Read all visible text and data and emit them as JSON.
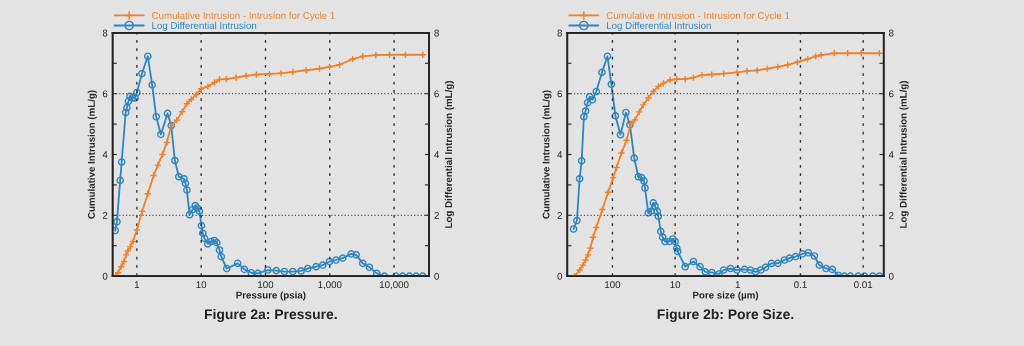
{
  "chart_data": [
    {
      "type": "line",
      "xlabel": "Pressure (psia)",
      "ylabel": "Cumulative Intrusion (mL/g)",
      "y2label": "Log Differential Intrusion (mL/g)",
      "log": "x",
      "xlim": [
        0.42,
        35000
      ],
      "xticks": [
        1,
        10,
        100,
        {
          "value": 1000,
          "label": "1,000"
        },
        {
          "value": 10000,
          "label": "10,000"
        }
      ],
      "ylim": [
        0,
        8
      ],
      "yticks": [
        0,
        {
          "value": 1,
          "label": null
        },
        2,
        {
          "value": 3,
          "label": null
        },
        4,
        {
          "value": 5,
          "label": null
        },
        6,
        {
          "value": 7,
          "label": null
        },
        8
      ],
      "y2lim": [
        0,
        8
      ],
      "y2ticks": [
        0,
        {
          "value": 1,
          "label": null
        },
        2,
        {
          "value": 3,
          "label": null
        },
        4,
        {
          "value": 5,
          "label": null
        },
        6,
        {
          "value": 7,
          "label": null
        },
        8
      ],
      "grid": "x",
      "legend": "top left",
      "ref_lines": [
        {
          "axis": "y",
          "value": 2,
          "line_style": "dotted"
        },
        {
          "axis": "y",
          "value": 6,
          "line_style": "dotted"
        }
      ],
      "annotations": [
        "Figure 2a: Pressure."
      ],
      "series": [
        {
          "name": "Cumulative Intrusion - Intrusion for Cycle 1",
          "color": "#f58025",
          "marker": "cross",
          "x": [
            0.47,
            0.51,
            0.57,
            0.63,
            0.68,
            0.72,
            0.79,
            0.87,
            1.0,
            1.21,
            1.48,
            1.82,
            2.12,
            2.5,
            2.93,
            3.42,
            4.18,
            5.06,
            6.0,
            7.0,
            8.4,
            10,
            12.7,
            16.1,
            19.3,
            24.5,
            35,
            50,
            72,
            115,
            175,
            266,
            430,
            690,
            990,
            1420,
            2270,
            3260,
            5200,
            8500,
            15000,
            28000
          ],
          "values": [
            0,
            0.11,
            0.31,
            0.48,
            0.7,
            0.83,
            0.97,
            1.14,
            1.52,
            2.13,
            2.71,
            3.31,
            3.65,
            4.0,
            4.4,
            4.95,
            5.13,
            5.41,
            5.67,
            5.81,
            5.97,
            6.16,
            6.24,
            6.37,
            6.47,
            6.48,
            6.53,
            6.59,
            6.63,
            6.65,
            6.67,
            6.72,
            6.77,
            6.82,
            6.88,
            6.95,
            7.14,
            7.23,
            7.27,
            7.28,
            7.28,
            7.28
          ]
        },
        {
          "name": "Log Differential Intrusion",
          "color": "#2e86c1",
          "marker": "circle",
          "axis": "y2",
          "x": [
            0.46,
            0.49,
            0.55,
            0.58,
            0.67,
            0.7,
            0.74,
            0.78,
            0.85,
            0.94,
            1.0,
            1.2,
            1.48,
            1.73,
            2.0,
            2.36,
            3.0,
            3.42,
            3.9,
            4.5,
            5.4,
            5.7,
            6.0,
            6.6,
            7.4,
            8.1,
            8.7,
            9.4,
            10.1,
            10.6,
            11.3,
            12.7,
            14.3,
            16.1,
            17.5,
            19.3,
            20.5,
            25,
            37,
            47,
            60,
            76,
            109,
            147,
            197,
            266,
            358,
            455,
            613,
            778,
            988,
            1250,
            1590,
            2150,
            2570,
            3260,
            4140,
            5380,
            7080,
            10700,
            13600,
            17300,
            22000,
            27900
          ],
          "values": [
            1.5,
            1.79,
            3.15,
            3.75,
            5.38,
            5.54,
            5.75,
            5.91,
            5.86,
            5.86,
            6.04,
            6.66,
            7.23,
            6.29,
            5.24,
            4.66,
            5.35,
            4.95,
            3.8,
            3.27,
            3.2,
            3.05,
            2.83,
            2.02,
            2.19,
            2.32,
            2.24,
            2.13,
            1.66,
            1.41,
            1.24,
            1.06,
            1.14,
            1.17,
            1.1,
            0.86,
            0.64,
            0.25,
            0.42,
            0.22,
            0.11,
            0.09,
            0.2,
            0.18,
            0.15,
            0.15,
            0.17,
            0.25,
            0.31,
            0.36,
            0.48,
            0.53,
            0.59,
            0.73,
            0.7,
            0.42,
            0.29,
            0.09,
            0,
            0,
            0,
            0,
            0,
            0
          ]
        }
      ]
    },
    {
      "type": "line",
      "xlabel": "Pore size (µm)",
      "ylabel": "Cumulative Intrusion (mL/g)",
      "y2label": "Log Differential Intrusion (mL/g)",
      "log": "x",
      "xlim": [
        525,
        0.0047
      ],
      "xticks": [
        100,
        10,
        1,
        0.1,
        0.01
      ],
      "ylim": [
        0,
        8
      ],
      "yticks": [
        0,
        {
          "value": 1,
          "label": null
        },
        2,
        {
          "value": 3,
          "label": null
        },
        4,
        {
          "value": 5,
          "label": null
        },
        6,
        {
          "value": 7,
          "label": null
        },
        8
      ],
      "y2lim": [
        0,
        8
      ],
      "y2ticks": [
        0,
        {
          "value": 1,
          "label": null
        },
        2,
        {
          "value": 3,
          "label": null
        },
        4,
        {
          "value": 5,
          "label": null
        },
        6,
        {
          "value": 7,
          "label": null
        },
        8
      ],
      "grid": "x",
      "legend": "top left",
      "ref_lines": [
        {
          "axis": "y",
          "value": 2,
          "line_style": "dotted"
        },
        {
          "axis": "y",
          "value": 6,
          "line_style": "dotted"
        }
      ],
      "annotations": [
        "Figure 2b: Pore Size."
      ],
      "series": [
        {
          "name": "Cumulative Intrusion - Intrusion for Cycle 1",
          "color": "#f58025",
          "marker": "cross",
          "x": [
            402,
            334,
            296,
            268,
            246,
            225,
            204,
            181,
            145,
            117,
            97.5,
            86,
            71.7,
            59.6,
            50.8,
            43.8,
            37.3,
            32.2,
            26.8,
            22.3,
            18.5,
            15.4,
            12.0,
            9.4,
            6.9,
            5.1,
            3.73,
            2.6,
            1.68,
            1.03,
            0.71,
            0.49,
            0.34,
            0.23,
            0.16,
            0.112,
            0.077,
            0.057,
            0.047,
            0.029,
            0.0177,
            0.0107,
            0.0055
          ],
          "values": [
            0,
            0.2,
            0.36,
            0.53,
            0.7,
            0.92,
            1.28,
            1.6,
            2.19,
            2.76,
            3.24,
            3.57,
            4.05,
            4.47,
            5.01,
            5.14,
            5.4,
            5.63,
            5.86,
            6.07,
            6.24,
            6.34,
            6.45,
            6.48,
            6.48,
            6.53,
            6.61,
            6.63,
            6.66,
            6.7,
            6.74,
            6.77,
            6.82,
            6.88,
            6.95,
            7.04,
            7.14,
            7.23,
            7.27,
            7.33,
            7.33,
            7.33,
            7.33
          ]
        },
        {
          "name": "Log Differential Intrusion",
          "color": "#2e86c1",
          "marker": "circle",
          "axis": "y2",
          "x": [
            417,
            369,
            334,
            310,
            285,
            268,
            249,
            231,
            209,
            181,
            147,
            120,
            104,
            89.5,
            74.5,
            61,
            52.7,
            44.9,
            38.7,
            34.3,
            31.4,
            30.3,
            26.8,
            24.3,
            22.3,
            20.9,
            19.2,
            18.5,
            17.0,
            15.8,
            14.5,
            12.3,
            10.9,
            10,
            9.4,
            9.1,
            6.9,
            5.1,
            4.0,
            3.3,
            2.6,
            2.0,
            1.68,
            1.31,
            1.03,
            0.78,
            0.63,
            0.52,
            0.43,
            0.36,
            0.29,
            0.23,
            0.18,
            0.15,
            0.12,
            0.093,
            0.075,
            0.06,
            0.05,
            0.039,
            0.031,
            0.025,
            0.02,
            0.016,
            0.012,
            0.0095,
            0.007,
            0.0055
          ],
          "values": [
            1.55,
            1.83,
            3.2,
            3.79,
            5.24,
            5.43,
            5.7,
            5.9,
            5.8,
            6.07,
            6.7,
            7.23,
            6.31,
            5.27,
            4.65,
            5.38,
            4.98,
            3.88,
            3.27,
            3.24,
            3.13,
            2.9,
            2.08,
            2.13,
            2.41,
            2.3,
            2.13,
            1.97,
            1.47,
            1.28,
            1.14,
            1.14,
            1.22,
            1.14,
            0.92,
            0.81,
            0.31,
            0.48,
            0.31,
            0.14,
            0.12,
            0.07,
            0.2,
            0.25,
            0.2,
            0.22,
            0.2,
            0.14,
            0.2,
            0.29,
            0.42,
            0.42,
            0.53,
            0.59,
            0.64,
            0.73,
            0.77,
            0.66,
            0.36,
            0.25,
            0.22,
            0.03,
            0,
            0,
            0,
            0,
            0,
            0
          ]
        }
      ]
    }
  ]
}
